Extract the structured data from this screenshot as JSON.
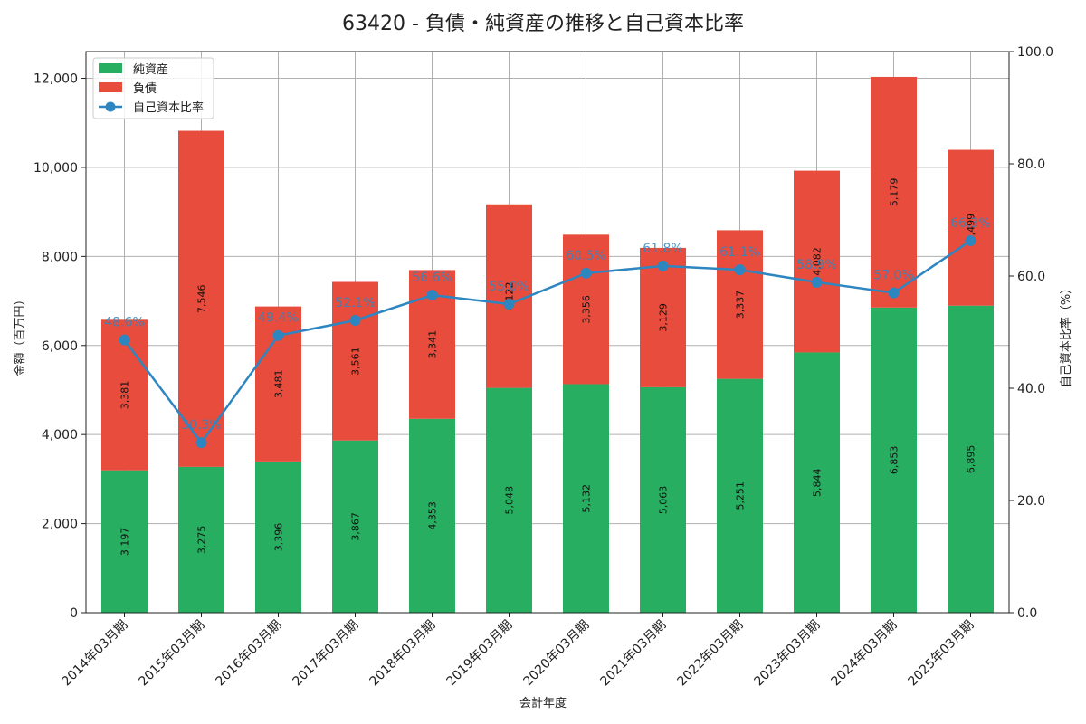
{
  "chart_data": {
    "type": "bar",
    "stacked": true,
    "title": "63420 - 負債・純資産の推移と自己資本比率",
    "xlabel": "会計年度",
    "ylabel": "金額（百万円）",
    "y2label": "自己資本比率（%）",
    "ylim": [
      0,
      12600
    ],
    "y2lim": [
      0,
      100
    ],
    "yticks": [
      0,
      2000,
      4000,
      6000,
      8000,
      10000,
      12000
    ],
    "yticks_text": [
      "0",
      "2,000",
      "4,000",
      "6,000",
      "8,000",
      "10,000",
      "12,000"
    ],
    "y2ticks": [
      0,
      20,
      40,
      60,
      80,
      100
    ],
    "y2ticks_text": [
      "0.0",
      "20.0",
      "40.0",
      "60.0",
      "80.0",
      "100.0"
    ],
    "grid": true,
    "legend_position": "top-left",
    "categories": [
      "2014年03月期",
      "2015年03月期",
      "2016年03月期",
      "2017年03月期",
      "2018年03月期",
      "2019年03月期",
      "2020年03月期",
      "2021年03月期",
      "2022年03月期",
      "2023年03月期",
      "2024年03月期",
      "2025年03月期"
    ],
    "series": [
      {
        "name": "純資産",
        "kind": "bar",
        "color": "#27ae60",
        "values": [
          3197,
          3275,
          3396,
          3867,
          4353,
          5048,
          5132,
          5063,
          5251,
          5844,
          6853,
          6895
        ],
        "labels": [
          "3,197",
          "3,275",
          "3,396",
          "3,867",
          "4,353",
          "5,048",
          "5,132",
          "5,063",
          "5,251",
          "5,844",
          "6,853",
          "6,895"
        ]
      },
      {
        "name": "負債",
        "kind": "bar",
        "color": "#e74c3c",
        "values": [
          3381,
          7546,
          3481,
          3561,
          3341,
          4122,
          3356,
          3129,
          3337,
          4082,
          5179,
          3499
        ],
        "labels": [
          "3,381",
          "7,546",
          "3,481",
          "3,561",
          "3,341",
          "4,122",
          "3,356",
          "3,129",
          "3,337",
          "4,082",
          "5,179",
          "3,499"
        ]
      },
      {
        "name": "自己資本比率",
        "kind": "line",
        "axis": "right",
        "color": "#2e86c1",
        "values": [
          48.6,
          30.3,
          49.4,
          52.1,
          56.6,
          55.0,
          60.5,
          61.8,
          61.1,
          58.9,
          57.0,
          66.3
        ],
        "labels": [
          "48.6%",
          "30.3%",
          "49.4%",
          "52.1%",
          "56.6%",
          "55.0%",
          "60.5%",
          "61.8%",
          "61.1%",
          "58.9%",
          "57.0%",
          "66.3%"
        ]
      }
    ]
  }
}
